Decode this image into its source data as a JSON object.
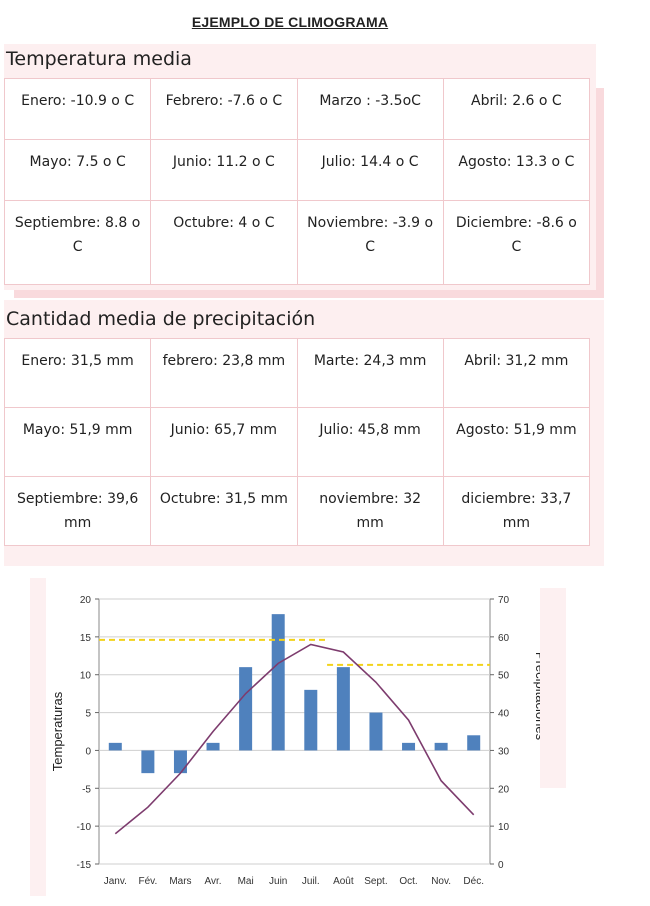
{
  "document": {
    "title": "EJEMPLO DE CLIMOGRAMA"
  },
  "temperature_section": {
    "title": "Temperatura media",
    "rows": [
      [
        "Enero: -10.9 o C",
        "Febrero: -7.6 o C",
        "Marzo : -3.5oC",
        "Abril: 2.6 o C"
      ],
      [
        "Mayo: 7.5 o C",
        "Junio: 11.2 o C",
        "Julio: 14.4 o C",
        "Agosto: 13.3 o C"
      ],
      [
        "Septiembre: 8.8 o C",
        "Octubre: 4 o C",
        "Noviembre: -3.9 o C",
        "Diciembre: -8.6 o C"
      ]
    ]
  },
  "precipitation_section": {
    "title": "Cantidad media de precipitación",
    "rows": [
      [
        "Enero: 31,5 mm",
        "febrero: 23,8 mm",
        "Marte: 24,3 mm",
        "Abril: 31,2 mm"
      ],
      [
        "Mayo: 51,9 mm",
        "Junio: 65,7 mm",
        "Julio: 45,8 mm",
        "Agosto: 51,9 mm"
      ],
      [
        "Septiembre: 39,6 mm",
        "Octubre: 31,5 mm",
        "noviembre: 32 mm",
        "diciembre: 33,7 mm"
      ]
    ]
  },
  "chart_data": {
    "type": "bar",
    "categories": [
      "Janv.",
      "Fév.",
      "Mars",
      "Avr.",
      "Mai",
      "Juin",
      "Juil.",
      "Août",
      "Sept.",
      "Oct.",
      "Nov.",
      "Déc."
    ],
    "ylabel": "Temperaturas",
    "y2label": "Precipitaciones",
    "ylim": [
      -15,
      20
    ],
    "yticks": [
      20,
      15,
      10,
      5,
      0,
      -5,
      -10,
      -15
    ],
    "y2lim": [
      0,
      70
    ],
    "y2ticks": [
      70,
      60,
      50,
      40,
      30,
      20,
      10,
      0
    ],
    "grid": true,
    "bars_axis": "left",
    "bar_values": [
      1,
      -3,
      -3,
      1,
      11,
      18,
      8,
      11,
      5,
      1,
      1,
      2
    ],
    "line_axis": "right",
    "line_values": [
      8,
      15,
      24,
      35,
      45,
      53,
      58,
      56,
      48,
      38,
      22,
      13
    ],
    "reference_lines": [
      {
        "from": "Janv.",
        "to": "Juil.",
        "value": 14.6
      },
      {
        "from": "Août",
        "to": "Déc.",
        "value": 11.3
      }
    ],
    "colors": {
      "bars": "#4f81bd",
      "line": "#7d3c6e",
      "reference": "#f2d21a"
    }
  }
}
